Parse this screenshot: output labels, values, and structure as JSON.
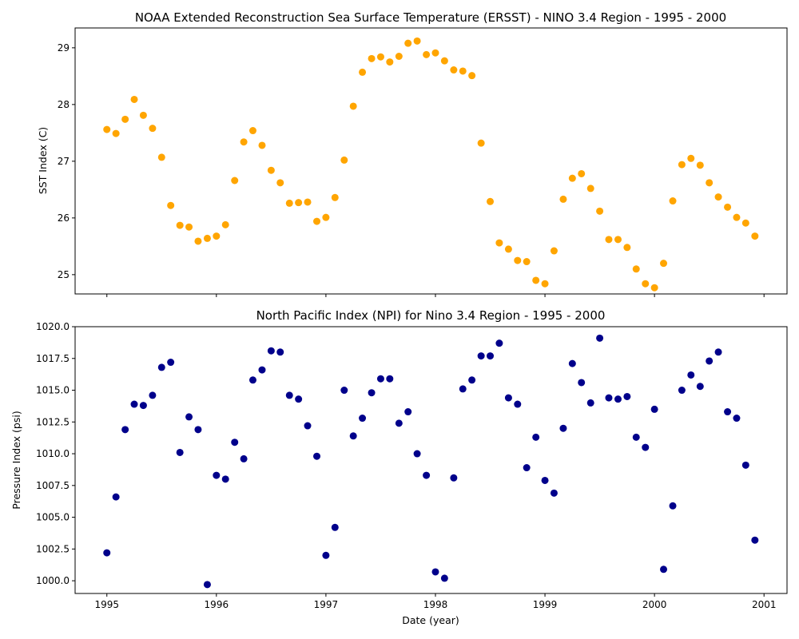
{
  "chart_data": [
    {
      "type": "scatter",
      "title": "NOAA Extended Reconstruction Sea Surface Temperature (ERSST) - NINO 3.4 Region - 1995 - 2000",
      "xlabel": "",
      "ylabel": "SST Index (C)",
      "xlim": [
        1994.71,
        2001.21
      ],
      "ylim": [
        24.66,
        29.35
      ],
      "x_ticks": [
        1995,
        1996,
        1997,
        1998,
        1999,
        2000,
        2001
      ],
      "x_tick_labels": [],
      "y_ticks": [
        25,
        26,
        27,
        28,
        29
      ],
      "y_tick_labels": [
        "25",
        "26",
        "27",
        "28",
        "29"
      ],
      "grid": false,
      "series": [
        {
          "color": "#ffa500",
          "x": [
            1995.0,
            1995.083,
            1995.167,
            1995.25,
            1995.333,
            1995.417,
            1995.5,
            1995.583,
            1995.667,
            1995.75,
            1995.833,
            1995.917,
            1996.0,
            1996.083,
            1996.167,
            1996.25,
            1996.333,
            1996.417,
            1996.5,
            1996.583,
            1996.667,
            1996.75,
            1996.833,
            1996.917,
            1997.0,
            1997.083,
            1997.167,
            1997.25,
            1997.333,
            1997.417,
            1997.5,
            1997.583,
            1997.667,
            1997.75,
            1997.833,
            1997.917,
            1998.0,
            1998.083,
            1998.167,
            1998.25,
            1998.333,
            1998.417,
            1998.5,
            1998.583,
            1998.667,
            1998.75,
            1998.833,
            1998.917,
            1999.0,
            1999.083,
            1999.167,
            1999.25,
            1999.333,
            1999.417,
            1999.5,
            1999.583,
            1999.667,
            1999.75,
            1999.833,
            1999.917,
            2000.0,
            2000.083,
            2000.167,
            2000.25,
            2000.333,
            2000.417,
            2000.5,
            2000.583,
            2000.667,
            2000.75,
            2000.833,
            2000.917
          ],
          "y": [
            27.56,
            27.49,
            27.74,
            28.09,
            27.81,
            27.58,
            27.07,
            26.22,
            25.87,
            25.84,
            25.59,
            25.64,
            25.68,
            25.88,
            26.66,
            27.34,
            27.54,
            27.28,
            26.84,
            26.62,
            26.26,
            26.27,
            26.28,
            25.94,
            26.01,
            26.36,
            27.02,
            27.97,
            28.57,
            28.81,
            28.84,
            28.75,
            28.85,
            29.08,
            29.12,
            28.88,
            28.91,
            28.77,
            28.61,
            28.59,
            28.51,
            27.32,
            26.29,
            25.56,
            25.45,
            25.25,
            25.23,
            24.9,
            24.84,
            25.42,
            26.33,
            26.7,
            26.78,
            26.52,
            26.12,
            25.62,
            25.62,
            25.48,
            25.1,
            24.84,
            24.77,
            25.2,
            26.3,
            26.94,
            27.05,
            26.93,
            26.62,
            26.37,
            26.19,
            26.01,
            25.91,
            25.68
          ]
        }
      ]
    },
    {
      "type": "scatter",
      "title": "North Pacific Index (NPI) for Nino 3.4 Region - 1995 - 2000",
      "xlabel": "Date (year)",
      "ylabel": "Pressure Index (psi)",
      "xlim": [
        1994.71,
        2001.21
      ],
      "ylim": [
        999.0,
        1020.0
      ],
      "x_ticks": [
        1995,
        1996,
        1997,
        1998,
        1999,
        2000,
        2001
      ],
      "x_tick_labels": [
        "1995",
        "1996",
        "1997",
        "1998",
        "1999",
        "2000",
        "2001"
      ],
      "y_ticks": [
        1000.0,
        1002.5,
        1005.0,
        1007.5,
        1010.0,
        1012.5,
        1015.0,
        1017.5,
        1020.0
      ],
      "y_tick_labels": [
        "1000.0",
        "1002.5",
        "1005.0",
        "1007.5",
        "1010.0",
        "1012.5",
        "1015.0",
        "1017.5",
        "1020.0"
      ],
      "grid": false,
      "series": [
        {
          "color": "#00008b",
          "x": [
            1995.0,
            1995.083,
            1995.167,
            1995.25,
            1995.333,
            1995.417,
            1995.5,
            1995.583,
            1995.667,
            1995.75,
            1995.833,
            1995.917,
            1996.0,
            1996.083,
            1996.167,
            1996.25,
            1996.333,
            1996.417,
            1996.5,
            1996.583,
            1996.667,
            1996.75,
            1996.833,
            1996.917,
            1997.0,
            1997.083,
            1997.167,
            1997.25,
            1997.333,
            1997.417,
            1997.5,
            1997.583,
            1997.667,
            1997.75,
            1997.833,
            1997.917,
            1998.0,
            1998.083,
            1998.167,
            1998.25,
            1998.333,
            1998.417,
            1998.5,
            1998.583,
            1998.667,
            1998.75,
            1998.833,
            1998.917,
            1999.0,
            1999.083,
            1999.167,
            1999.25,
            1999.333,
            1999.417,
            1999.5,
            1999.583,
            1999.667,
            1999.75,
            1999.833,
            1999.917,
            2000.0,
            2000.083,
            2000.167,
            2000.25,
            2000.333,
            2000.417,
            2000.5,
            2000.583,
            2000.667,
            2000.75,
            2000.833,
            2000.917
          ],
          "y": [
            1002.2,
            1006.6,
            1011.9,
            1013.9,
            1013.8,
            1014.6,
            1016.8,
            1017.2,
            1010.1,
            1012.9,
            1011.9,
            999.7,
            1008.3,
            1008.0,
            1010.9,
            1009.6,
            1015.8,
            1016.6,
            1018.1,
            1018.0,
            1014.6,
            1014.3,
            1012.2,
            1009.8,
            1002.0,
            1004.2,
            1015.0,
            1011.4,
            1012.8,
            1014.8,
            1015.9,
            1015.9,
            1012.4,
            1013.3,
            1010.0,
            1008.3,
            1000.7,
            1000.2,
            1008.1,
            1015.1,
            1015.8,
            1017.7,
            1017.7,
            1018.7,
            1014.4,
            1013.9,
            1008.9,
            1011.3,
            1007.9,
            1006.9,
            1012.0,
            1017.1,
            1015.6,
            1014.0,
            1019.1,
            1014.4,
            1014.3,
            1014.5,
            1011.3,
            1010.5,
            1013.5,
            1000.9,
            1005.9,
            1015.0,
            1016.2,
            1015.3,
            1017.3,
            1018.0,
            1013.3,
            1012.8,
            1009.1,
            1003.2
          ]
        }
      ]
    }
  ]
}
